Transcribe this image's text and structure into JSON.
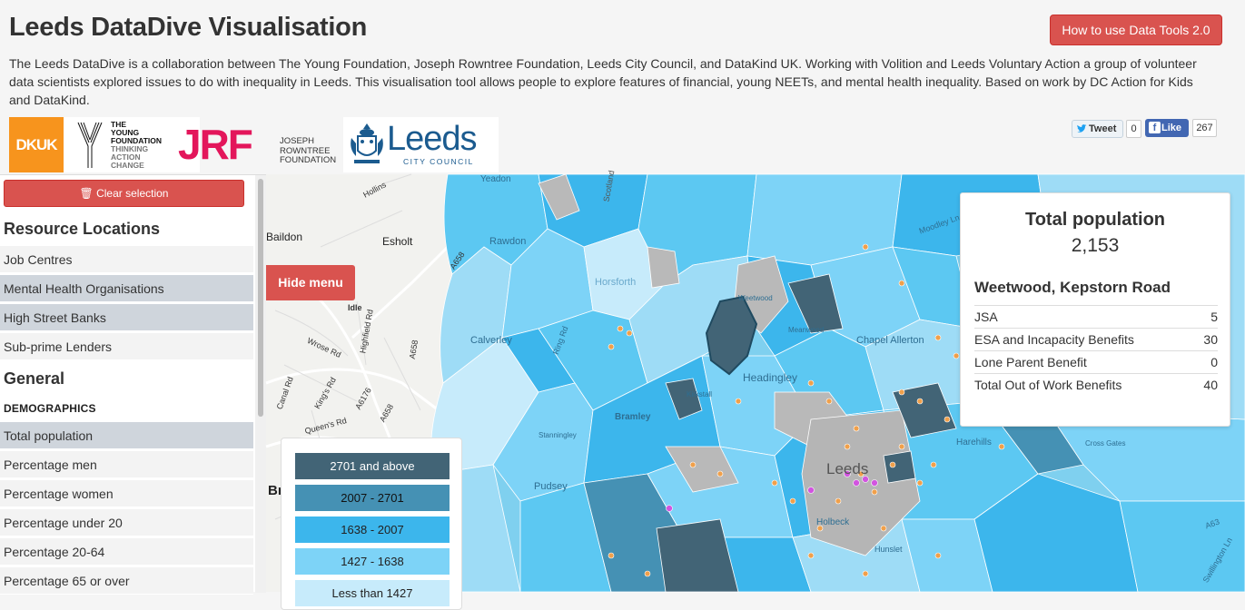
{
  "header": {
    "title": "Leeds DataDive Visualisation",
    "howto_label": "How to use Data Tools 2.0",
    "intro": "The Leeds DataDive is a collaboration between The Young Foundation, Joseph Rowntree Foundation, Leeds City Council, and DataKind UK. Working with Volition and Leeds Voluntary Action a group of volunteer data scientists explored issues to do with inequality in Leeds. This visualisation tool allows people to explore features of financial, young NEETs, and mental health inequality. Based on work by DC Action for Kids and DataKind."
  },
  "logos": {
    "dkuk": "DKUK",
    "young_foundation": [
      "THE",
      "YOUNG",
      "FOUNDATION"
    ],
    "young_foundation_sub": [
      "THINKING",
      "ACTION",
      "CHANGE"
    ],
    "jrf": "JRF",
    "jrf_small": [
      "JOSEPH",
      "ROWNTREE",
      "FOUNDATION"
    ],
    "leeds": "Leeds",
    "leeds_sub": "CITY COUNCIL"
  },
  "social": {
    "tweet_label": "Tweet",
    "tweet_count": "0",
    "like_label": "Like",
    "like_count": "267"
  },
  "sidebar": {
    "clear_label": "Clear selection",
    "resource_heading": "Resource Locations",
    "resources": [
      "Job Centres",
      "Mental Health Organisations",
      "High Street Banks",
      "Sub-prime Lenders"
    ],
    "general_heading": "General",
    "demographics_label": "DEMOGRAPHICS",
    "demographics": [
      "Total population",
      "Percentage men",
      "Percentage women",
      "Percentage under 20",
      "Percentage 20-64",
      "Percentage 65 or over"
    ]
  },
  "map": {
    "hide_menu_label": "Hide menu",
    "places": [
      "Esholt",
      "Horsforth",
      "Calverley",
      "Bramley",
      "Stanningley",
      "Pudsey",
      "Headingley",
      "Kirkstall",
      "Weetwood",
      "Meanwood",
      "Chapel Allerton",
      "Harehills",
      "Leeds",
      "Holbeck",
      "Hunslet",
      "Cross Gates",
      "Idle",
      "Yeadon",
      "Rawdon",
      "Baildon",
      "Br"
    ],
    "roads": [
      "Hollins",
      "A658",
      "Highfield Rd",
      "Wrose Rd",
      "Canal Rd",
      "Queen's Rd",
      "King's Rd",
      "A6176",
      "A658",
      "A658",
      "Ring Rd",
      "A63",
      "Swillington Ln",
      "Moodley Ln",
      "Scotland"
    ]
  },
  "legend": {
    "items": [
      {
        "label": "2701 and above",
        "color": "#426476"
      },
      {
        "label": "2007 - 2701",
        "color": "#4591b4"
      },
      {
        "label": "1638 - 2007",
        "color": "#3cb6ec"
      },
      {
        "label": "1427 - 1638",
        "color": "#7dd3f7"
      },
      {
        "label": "Less than 1427",
        "color": "#c7ebfb"
      }
    ]
  },
  "info": {
    "title": "Total population",
    "value": "2,153",
    "area": "Weetwood, Kepstorn Road",
    "rows": [
      {
        "label": "JSA",
        "value": "5"
      },
      {
        "label": "ESA and Incapacity Benefits",
        "value": "30"
      },
      {
        "label": "Lone Parent Benefit",
        "value": "0"
      },
      {
        "label": "Total Out of Work Benefits",
        "value": "40"
      }
    ]
  }
}
